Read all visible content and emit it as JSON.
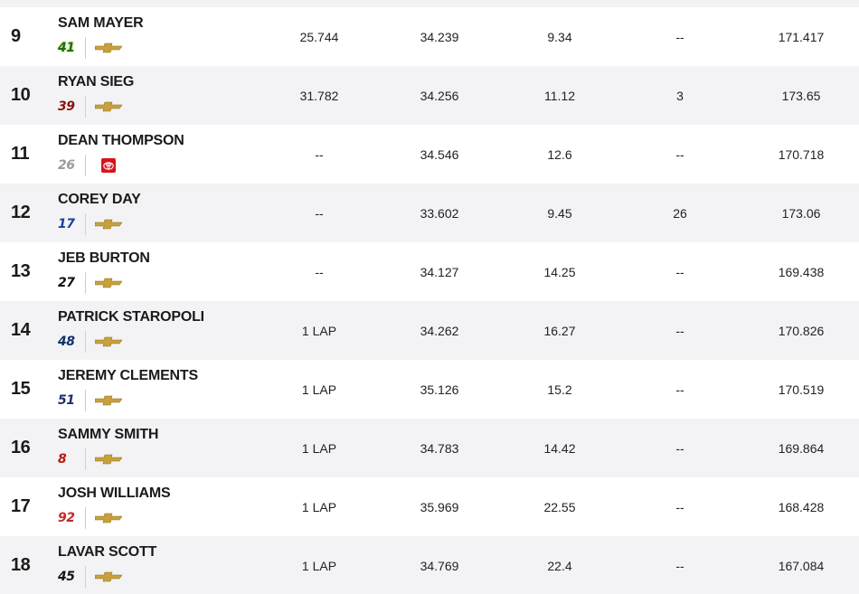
{
  "colors": {
    "row_alt": "#f3f3f5",
    "chevy_gold": "#c9a13c",
    "toyota_red": "#d6141b"
  },
  "columns": [
    "gap",
    "last_lap",
    "avg_pos",
    "laps_led",
    "avg_speed"
  ],
  "rows": [
    {
      "pos": "9",
      "driver": "SAM MAYER",
      "car": "41",
      "car_color": "#1a6b2c",
      "car_bg": "#cde84a",
      "make": "chevrolet",
      "gap": "25.744",
      "last_lap": "34.239",
      "avg_pos": "9.34",
      "laps_led": "--",
      "avg_speed": "171.417"
    },
    {
      "pos": "10",
      "driver": "RYAN SIEG",
      "car": "39",
      "car_color": "#8a1111",
      "car_bg": "",
      "make": "chevrolet",
      "gap": "31.782",
      "last_lap": "34.256",
      "avg_pos": "11.12",
      "laps_led": "3",
      "avg_speed": "173.65"
    },
    {
      "pos": "11",
      "driver": "DEAN THOMPSON",
      "car": "26",
      "car_color": "#9a9aa0",
      "car_bg": "",
      "make": "toyota",
      "gap": "--",
      "last_lap": "34.546",
      "avg_pos": "12.6",
      "laps_led": "--",
      "avg_speed": "170.718"
    },
    {
      "pos": "12",
      "driver": "COREY DAY",
      "car": "17",
      "car_color": "#1d3e9e",
      "car_bg": "",
      "make": "chevrolet",
      "gap": "--",
      "last_lap": "33.602",
      "avg_pos": "9.45",
      "laps_led": "26",
      "avg_speed": "173.06"
    },
    {
      "pos": "13",
      "driver": "JEB BURTON",
      "car": "27",
      "car_color": "#111111",
      "car_bg": "",
      "make": "chevrolet",
      "gap": "--",
      "last_lap": "34.127",
      "avg_pos": "14.25",
      "laps_led": "--",
      "avg_speed": "169.438"
    },
    {
      "pos": "14",
      "driver": "PATRICK STAROPOLI",
      "car": "48",
      "car_color": "#12306e",
      "car_bg": "",
      "make": "chevrolet",
      "gap": "1 LAP",
      "last_lap": "34.262",
      "avg_pos": "16.27",
      "laps_led": "--",
      "avg_speed": "170.826"
    },
    {
      "pos": "15",
      "driver": "JEREMY CLEMENTS",
      "car": "51",
      "car_color": "#1c2f6b",
      "car_bg": "",
      "make": "chevrolet",
      "gap": "1 LAP",
      "last_lap": "35.126",
      "avg_pos": "15.2",
      "laps_led": "--",
      "avg_speed": "170.519"
    },
    {
      "pos": "16",
      "driver": "SAMMY SMITH",
      "car": "8",
      "car_color": "#b81717",
      "car_bg": "",
      "make": "chevrolet",
      "gap": "1 LAP",
      "last_lap": "34.783",
      "avg_pos": "14.42",
      "laps_led": "--",
      "avg_speed": "169.864"
    },
    {
      "pos": "17",
      "driver": "JOSH WILLIAMS",
      "car": "92",
      "car_color": "#c42a2a",
      "car_bg": "",
      "make": "chevrolet",
      "gap": "1 LAP",
      "last_lap": "35.969",
      "avg_pos": "22.55",
      "laps_led": "--",
      "avg_speed": "168.428"
    },
    {
      "pos": "18",
      "driver": "LAVAR SCOTT",
      "car": "45",
      "car_color": "#141414",
      "car_bg": "",
      "make": "chevrolet",
      "gap": "1 LAP",
      "last_lap": "34.769",
      "avg_pos": "22.4",
      "laps_led": "--",
      "avg_speed": "167.084"
    }
  ]
}
